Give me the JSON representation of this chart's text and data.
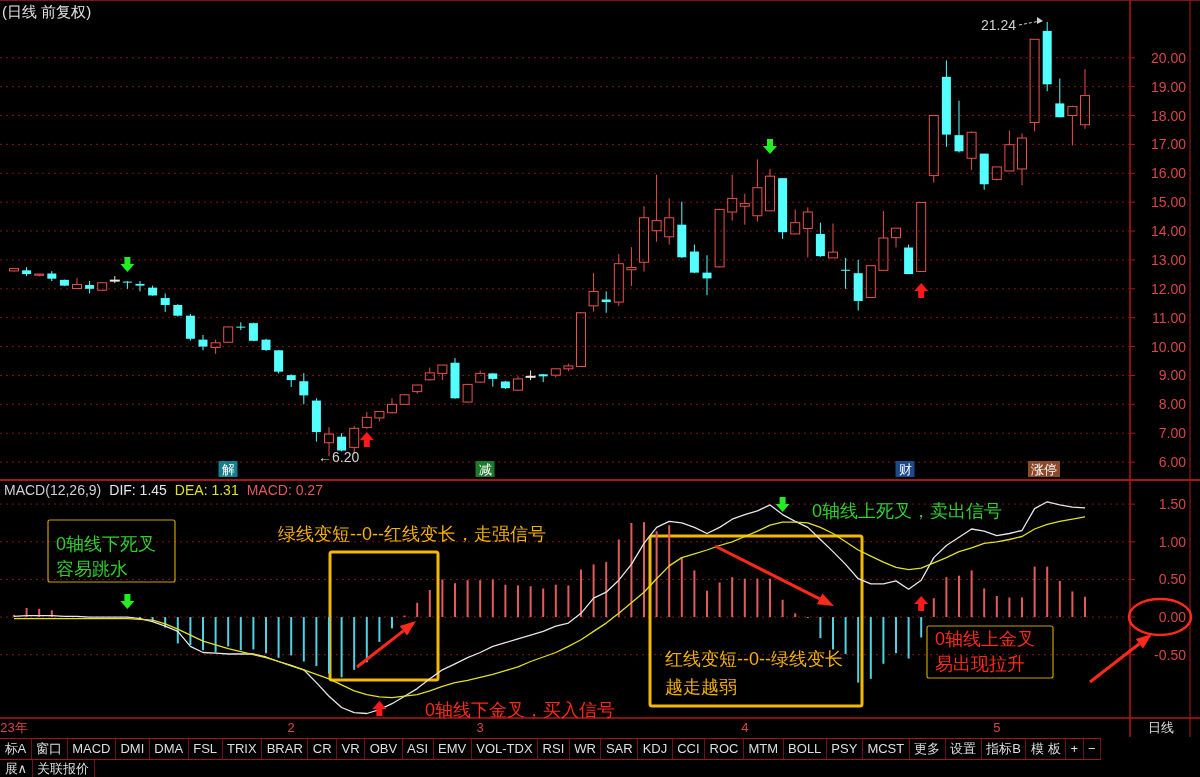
{
  "chart_data": [
    {
      "type": "candlestick",
      "title": "(日线 前复权)",
      "tick_labels": "y",
      "grid": "y",
      "categories": [
        null,
        null,
        null,
        null,
        null,
        null,
        null,
        null,
        null,
        null,
        null,
        null,
        null,
        null,
        null,
        null,
        null,
        null,
        null,
        null,
        null,
        null,
        null,
        null,
        null,
        null,
        null,
        null,
        null,
        null,
        null,
        null,
        null,
        null,
        null,
        null,
        null,
        null,
        null,
        null,
        null,
        null,
        null,
        null,
        null,
        null,
        null,
        null,
        null,
        null,
        null,
        null,
        null,
        null,
        null,
        null,
        null,
        null,
        null,
        null,
        null,
        null,
        null,
        null,
        null,
        null,
        null,
        null,
        null,
        null,
        null,
        null,
        null,
        null,
        null,
        null,
        null,
        null,
        null,
        null,
        null,
        null,
        null,
        null,
        null,
        null
      ],
      "ohlc": [
        [
          12.62,
          12.72,
          12.6,
          12.7
        ],
        [
          12.64,
          12.75,
          12.44,
          12.51
        ],
        [
          12.47,
          12.52,
          12.43,
          12.51
        ],
        [
          12.53,
          12.61,
          12.27,
          12.35
        ],
        [
          12.31,
          12.32,
          12.1,
          12.11
        ],
        [
          12.01,
          12.37,
          12.0,
          12.15
        ],
        [
          12.13,
          12.27,
          11.84,
          12.0
        ],
        [
          11.95,
          12.23,
          11.93,
          12.21
        ],
        [
          12.3,
          12.44,
          12.2,
          12.3
        ],
        [
          12.25,
          12.26,
          12.0,
          12.23
        ],
        [
          12.17,
          12.27,
          11.91,
          12.11
        ],
        [
          12.04,
          12.11,
          11.76,
          11.77
        ],
        [
          11.68,
          11.84,
          11.2,
          11.44
        ],
        [
          11.44,
          11.47,
          11.04,
          11.07
        ],
        [
          11.07,
          11.13,
          10.21,
          10.27
        ],
        [
          10.24,
          10.4,
          9.87,
          10.0
        ],
        [
          9.97,
          10.24,
          9.75,
          10.13
        ],
        [
          10.15,
          10.7,
          10.12,
          10.68
        ],
        [
          10.69,
          10.84,
          10.57,
          10.67
        ],
        [
          10.81,
          10.83,
          10.19,
          10.2
        ],
        [
          10.24,
          10.27,
          9.85,
          9.88
        ],
        [
          9.87,
          9.88,
          9.07,
          9.13
        ],
        [
          9.01,
          9.04,
          8.6,
          8.84
        ],
        [
          8.8,
          9.08,
          8.0,
          8.31
        ],
        [
          8.13,
          8.21,
          6.71,
          7.04
        ],
        [
          6.67,
          7.21,
          6.2,
          6.97
        ],
        [
          6.88,
          7.0,
          6.37,
          6.4
        ],
        [
          6.51,
          7.24,
          6.27,
          7.17
        ],
        [
          7.2,
          7.73,
          7.15,
          7.55
        ],
        [
          7.53,
          7.75,
          7.41,
          7.75
        ],
        [
          7.71,
          8.21,
          7.68,
          8.0
        ],
        [
          8.0,
          8.35,
          7.99,
          8.33
        ],
        [
          8.44,
          8.68,
          8.37,
          8.67
        ],
        [
          8.85,
          9.27,
          8.83,
          9.09
        ],
        [
          9.07,
          9.36,
          8.84,
          9.36
        ],
        [
          9.44,
          9.6,
          8.19,
          8.21
        ],
        [
          8.08,
          8.71,
          8.06,
          8.69
        ],
        [
          8.77,
          9.17,
          8.75,
          9.07
        ],
        [
          9.07,
          9.09,
          8.61,
          8.88
        ],
        [
          8.79,
          8.81,
          8.53,
          8.56
        ],
        [
          8.49,
          8.97,
          8.47,
          8.88
        ],
        [
          8.97,
          9.17,
          8.84,
          8.97
        ],
        [
          9.04,
          9.05,
          8.77,
          8.97
        ],
        [
          9.01,
          9.24,
          8.93,
          9.23
        ],
        [
          9.23,
          9.41,
          9.15,
          9.33
        ],
        [
          9.31,
          11.2,
          9.29,
          11.17
        ],
        [
          11.41,
          12.54,
          11.21,
          11.91
        ],
        [
          11.63,
          11.91,
          11.17,
          11.54
        ],
        [
          11.54,
          13.2,
          11.41,
          12.87
        ],
        [
          12.66,
          13.44,
          12.1,
          12.74
        ],
        [
          12.92,
          14.86,
          12.6,
          14.46
        ],
        [
          14.01,
          15.95,
          13.63,
          14.36
        ],
        [
          13.8,
          15.13,
          13.53,
          14.46
        ],
        [
          14.22,
          15.02,
          13.07,
          13.09
        ],
        [
          13.29,
          13.53,
          12.54,
          12.56
        ],
        [
          12.56,
          13.16,
          11.78,
          12.36
        ],
        [
          12.76,
          14.77,
          12.74,
          14.75
        ],
        [
          14.66,
          15.95,
          14.36,
          15.13
        ],
        [
          14.86,
          15.29,
          14.22,
          14.95
        ],
        [
          14.53,
          16.48,
          14.33,
          15.5
        ],
        [
          14.7,
          16.15,
          14.7,
          15.9
        ],
        [
          15.83,
          15.83,
          13.73,
          13.96
        ],
        [
          13.9,
          14.75,
          13.9,
          14.29
        ],
        [
          14.09,
          14.82,
          13.09,
          14.66
        ],
        [
          13.9,
          14.29,
          13.11,
          13.13
        ],
        [
          13.07,
          14.26,
          13.07,
          13.27
        ],
        [
          12.66,
          13.07,
          12.0,
          12.64
        ],
        [
          12.54,
          13.0,
          11.25,
          11.58
        ],
        [
          11.7,
          12.82,
          11.68,
          12.8
        ],
        [
          12.64,
          14.69,
          12.64,
          13.76
        ],
        [
          13.77,
          14.1,
          13.43,
          14.1
        ],
        [
          13.43,
          13.53,
          12.51,
          12.51
        ],
        [
          12.6,
          14.99,
          12.6,
          14.99
        ],
        [
          15.92,
          18.0,
          15.68,
          18.0
        ],
        [
          19.34,
          19.91,
          16.92,
          17.34
        ],
        [
          17.32,
          18.51,
          16.72,
          16.76
        ],
        [
          16.52,
          17.45,
          16.12,
          17.42
        ],
        [
          16.68,
          16.68,
          15.43,
          15.62
        ],
        [
          15.79,
          16.22,
          15.75,
          16.22
        ],
        [
          16.08,
          17.48,
          16.08,
          16.99
        ],
        [
          16.15,
          17.38,
          15.59,
          17.22
        ],
        [
          17.76,
          20.64,
          17.45,
          20.64
        ],
        [
          20.93,
          21.24,
          18.84,
          19.08
        ],
        [
          18.42,
          19.28,
          17.94,
          17.94
        ],
        [
          18.0,
          18.34,
          16.96,
          18.31
        ],
        [
          17.68,
          19.6,
          17.54,
          18.69
        ]
      ],
      "colors": [
        "#e8504c",
        "#54ffff",
        "#e8504c",
        "#54ffff",
        "#54ffff",
        "#e8504c",
        "#54ffff",
        "#e8504c",
        "#e8e8e8",
        "#54ffff",
        "#54ffff",
        "#54ffff",
        "#54ffff",
        "#54ffff",
        "#54ffff",
        "#54ffff",
        "#e8504c",
        "#e8504c",
        "#54ffff",
        "#54ffff",
        "#54ffff",
        "#54ffff",
        "#54ffff",
        "#54ffff",
        "#54ffff",
        "#e8504c",
        "#54ffff",
        "#e8504c",
        "#e8504c",
        "#e8504c",
        "#e8504c",
        "#e8504c",
        "#e8504c",
        "#e8504c",
        "#e8504c",
        "#54ffff",
        "#e8504c",
        "#e8504c",
        "#54ffff",
        "#54ffff",
        "#e8504c",
        "#e8e8e8",
        "#54ffff",
        "#e8504c",
        "#e8504c",
        "#e8504c",
        "#e8504c",
        "#54ffff",
        "#e8504c",
        "#e8504c",
        "#e8504c",
        "#e8504c",
        "#e8504c",
        "#54ffff",
        "#54ffff",
        "#54ffff",
        "#e8504c",
        "#e8504c",
        "#e8504c",
        "#e8504c",
        "#e8504c",
        "#54ffff",
        "#e8504c",
        "#e8504c",
        "#54ffff",
        "#e8504c",
        "#54ffff",
        "#54ffff",
        "#e8504c",
        "#e8504c",
        "#e8504c",
        "#54ffff",
        "#e8504c",
        "#e8504c",
        "#54ffff",
        "#54ffff",
        "#e8504c",
        "#54ffff",
        "#e8504c",
        "#e8504c",
        "#e8504c",
        "#e8504c",
        "#54ffff",
        "#54ffff",
        "#e8504c",
        "#e8504c"
      ],
      "ylim": [
        5.38,
        22.0
      ],
      "yticks": [
        {
          "value": 6,
          "label": "6.00"
        },
        {
          "value": 7,
          "label": "7.00"
        },
        {
          "value": 8,
          "label": "8.00"
        },
        {
          "value": 9,
          "label": "9.00"
        },
        {
          "value": 10,
          "label": "10.00"
        },
        {
          "value": 11,
          "label": "11.00"
        },
        {
          "value": 12,
          "label": "12.00"
        },
        {
          "value": 13,
          "label": "13.00"
        },
        {
          "value": 14,
          "label": "14.00"
        },
        {
          "value": 15,
          "label": "15.00"
        },
        {
          "value": 16,
          "label": "16.00"
        },
        {
          "value": 17,
          "label": "17.00"
        },
        {
          "value": 18,
          "label": "18.00"
        },
        {
          "value": 19,
          "label": "19.00"
        },
        {
          "value": 20,
          "label": "20.00"
        }
      ],
      "annotations": [
        "←6.20",
        "21.24",
        "解",
        "减",
        "财",
        "涨停"
      ]
    },
    {
      "type": "bar",
      "title": "MACD(12,26,9)",
      "legend": "top left",
      "grid": "y",
      "categories": [
        "23年",
        null,
        null,
        null,
        null,
        null,
        null,
        null,
        null,
        null,
        null,
        null,
        null,
        null,
        null,
        null,
        null,
        null,
        null,
        null,
        null,
        null,
        "2",
        null,
        null,
        null,
        null,
        null,
        null,
        null,
        null,
        null,
        null,
        null,
        null,
        null,
        null,
        "3",
        null,
        null,
        null,
        null,
        null,
        null,
        null,
        null,
        null,
        null,
        null,
        null,
        null,
        null,
        null,
        null,
        null,
        null,
        null,
        null,
        "4",
        null,
        null,
        null,
        null,
        null,
        null,
        null,
        null,
        null,
        null,
        null,
        null,
        null,
        null,
        null,
        null,
        null,
        null,
        null,
        "5",
        null,
        null,
        null,
        null,
        null,
        null,
        null
      ],
      "ylim": [
        -1.34,
        1.82
      ],
      "yticks": [
        {
          "value": -0.5,
          "label": "-0.50"
        },
        {
          "value": 0,
          "label": "0.00"
        },
        {
          "value": 0.5,
          "label": "0.50"
        },
        {
          "value": 1,
          "label": "1.00"
        },
        {
          "value": 1.5,
          "label": "1.50"
        }
      ],
      "series": [
        {
          "name": "DIF: 1.45",
          "type": "line",
          "color": "#e6e6e6",
          "values": [
            0.01,
            0.02,
            0.02,
            0.02,
            0.01,
            0.01,
            0.0,
            0.0,
            0.0,
            0.0,
            -0.02,
            -0.06,
            -0.12,
            -0.19,
            -0.39,
            -0.47,
            -0.48,
            -0.49,
            -0.49,
            -0.49,
            -0.53,
            -0.59,
            -0.64,
            -0.7,
            -0.87,
            -1.05,
            -1.2,
            -1.27,
            -1.28,
            -1.23,
            -1.15,
            -1.05,
            -0.95,
            -0.82,
            -0.7,
            -0.62,
            -0.54,
            -0.47,
            -0.39,
            -0.34,
            -0.29,
            -0.24,
            -0.19,
            -0.12,
            -0.08,
            0.05,
            0.25,
            0.33,
            0.49,
            0.7,
            0.98,
            1.19,
            1.27,
            1.25,
            1.19,
            1.11,
            1.19,
            1.3,
            1.36,
            1.41,
            1.49,
            1.36,
            1.27,
            1.19,
            1.03,
            0.87,
            0.7,
            0.51,
            0.44,
            0.44,
            0.48,
            0.37,
            0.49,
            0.79,
            0.95,
            1.06,
            1.17,
            1.14,
            1.08,
            1.11,
            1.15,
            1.44,
            1.53,
            1.49,
            1.46,
            1.45
          ]
        },
        {
          "name": "DEA: 1.31",
          "type": "line",
          "color": "#e0e020",
          "values": [
            -0.02,
            -0.02,
            -0.02,
            -0.02,
            -0.02,
            -0.02,
            -0.02,
            -0.02,
            -0.02,
            -0.02,
            -0.03,
            -0.04,
            -0.09,
            -0.16,
            -0.24,
            -0.32,
            -0.37,
            -0.42,
            -0.46,
            -0.5,
            -0.54,
            -0.59,
            -0.65,
            -0.7,
            -0.76,
            -0.82,
            -0.9,
            -0.98,
            -1.03,
            -1.06,
            -1.07,
            -1.05,
            -1.03,
            -0.98,
            -0.92,
            -0.87,
            -0.84,
            -0.8,
            -0.76,
            -0.71,
            -0.66,
            -0.59,
            -0.53,
            -0.47,
            -0.39,
            -0.3,
            -0.19,
            -0.08,
            0.05,
            0.19,
            0.33,
            0.51,
            0.68,
            0.79,
            0.84,
            0.89,
            0.95,
            1.0,
            1.07,
            1.14,
            1.22,
            1.26,
            1.26,
            1.25,
            1.19,
            1.11,
            1.0,
            0.89,
            0.81,
            0.73,
            0.66,
            0.63,
            0.65,
            0.72,
            0.79,
            0.87,
            0.92,
            0.98,
            1.0,
            1.03,
            1.07,
            1.17,
            1.23,
            1.27,
            1.3,
            1.33
          ]
        },
        {
          "name": "MACD: 0.27",
          "type": "bar",
          "color": "#e25a5a",
          "values": [
            0.03,
            0.12,
            0.11,
            0.09,
            null,
            null,
            null,
            null,
            null,
            null,
            -0.02,
            -0.06,
            -0.14,
            -0.35,
            -0.37,
            -0.44,
            -0.47,
            -0.39,
            -0.44,
            -0.43,
            -0.48,
            -0.54,
            -0.51,
            -0.59,
            -0.65,
            -0.75,
            -0.8,
            -0.7,
            -0.6,
            -0.33,
            -0.15,
            0.02,
            0.19,
            0.36,
            0.5,
            0.45,
            0.49,
            0.49,
            0.5,
            0.43,
            0.42,
            0.41,
            0.38,
            0.43,
            0.42,
            0.63,
            0.7,
            0.73,
            1.03,
            1.25,
            1.26,
            1.14,
            1.22,
            0.79,
            0.62,
            0.35,
            0.46,
            0.53,
            0.51,
            0.51,
            0.51,
            0.23,
            0.05,
            -0.01,
            -0.28,
            -0.43,
            -0.49,
            -0.87,
            -0.82,
            -0.62,
            -0.48,
            -0.55,
            -0.27,
            0.25,
            0.53,
            0.55,
            0.62,
            0.38,
            0.28,
            0.26,
            0.26,
            0.67,
            0.67,
            0.48,
            0.34,
            0.27
          ],
          "colors": [
            "#e25a5a",
            "#e25a5a",
            "#e25a5a",
            "#e25a5a",
            null,
            null,
            null,
            null,
            null,
            null,
            "#4fd3e3",
            "#4fd3e3",
            "#4fd3e3",
            "#4fd3e3",
            "#4fd3e3",
            "#4fd3e3",
            "#4fd3e3",
            "#4fd3e3",
            "#4fd3e3",
            "#4fd3e3",
            "#4fd3e3",
            "#4fd3e3",
            "#4fd3e3",
            "#4fd3e3",
            "#4fd3e3",
            "#4fd3e3",
            "#4fd3e3",
            "#4fd3e3",
            "#4fd3e3",
            "#4fd3e3",
            "#4fd3e3",
            "#e25a5a",
            "#e25a5a",
            "#e25a5a",
            "#e25a5a",
            "#e25a5a",
            "#e25a5a",
            "#e25a5a",
            "#e25a5a",
            "#e25a5a",
            "#e25a5a",
            "#e25a5a",
            "#e25a5a",
            "#e25a5a",
            "#e25a5a",
            "#e25a5a",
            "#e25a5a",
            "#e25a5a",
            "#e25a5a",
            "#e25a5a",
            "#e25a5a",
            "#e25a5a",
            "#e25a5a",
            "#e25a5a",
            "#e25a5a",
            "#e25a5a",
            "#e25a5a",
            "#e25a5a",
            "#e25a5a",
            "#e25a5a",
            "#e25a5a",
            "#e25a5a",
            "#e25a5a",
            "#4fd3e3",
            "#4fd3e3",
            "#4fd3e3",
            "#4fd3e3",
            "#4fd3e3",
            "#4fd3e3",
            "#4fd3e3",
            "#4fd3e3",
            "#4fd3e3",
            "#4fd3e3",
            "#e25a5a",
            "#e25a5a",
            "#e25a5a",
            "#e25a5a",
            "#e25a5a",
            "#e25a5a",
            "#e25a5a",
            "#e25a5a",
            "#e25a5a",
            "#e25a5a",
            "#e25a5a",
            "#e25a5a",
            "#e25a5a"
          ]
        }
      ],
      "annotations": [
        "0轴线下死叉",
        "容易跳水",
        "绿线变短--0--红线变长，走强信号",
        "0轴线下金叉，买入信号",
        "红线变短--0--绿线变长",
        "越走越弱",
        "0轴线上死叉，卖出信号",
        "0轴线上金叉",
        "易出现拉升"
      ]
    },
    {
      "type": "other",
      "annotations": [
        "标A",
        "窗口",
        "MACD",
        "DMI",
        "DMA",
        "FSL",
        "TRIX",
        "BRAR",
        "CR",
        "VR",
        "OBV",
        "ASI",
        "EMV",
        "VOL-TDX",
        "RSI",
        "WR",
        "SAR",
        "KDJ",
        "CCI",
        "ROC",
        "MTM",
        "BOLL",
        "PSY",
        "MCST",
        "更多",
        "设置",
        "指标B",
        "模 板",
        "+",
        "−",
        "日线",
        "展∧",
        "关联报价"
      ]
    }
  ]
}
